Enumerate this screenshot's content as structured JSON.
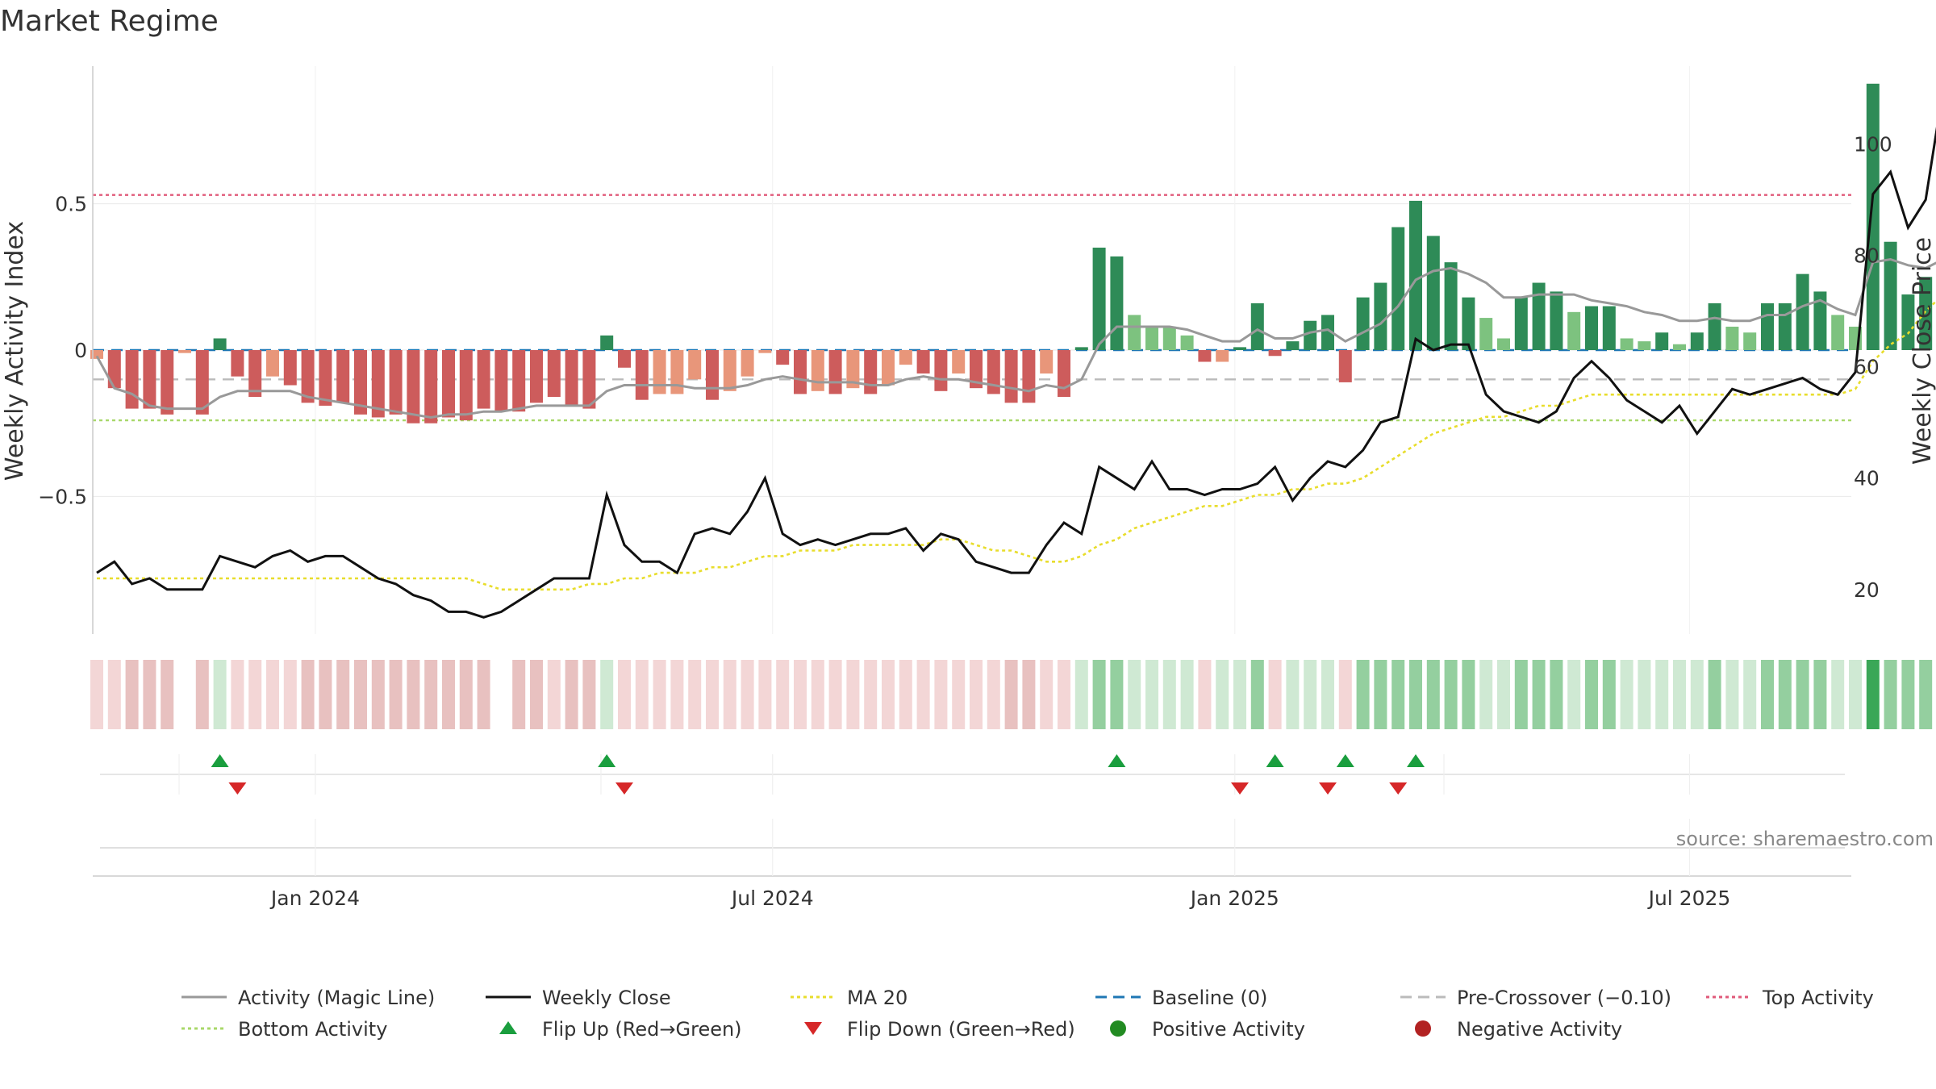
{
  "chart_data": {
    "type": "bar",
    "title": "Market Regime",
    "ylabel": "Weekly Activity Index",
    "y2label": "Weekly Close Price",
    "ylim": [
      -0.97,
      0.97
    ],
    "y2lim": [
      12,
      114
    ],
    "yticks": [
      {
        "v": 0.5,
        "label": "0.5"
      },
      {
        "v": 0,
        "label": "0"
      },
      {
        "v": -0.5,
        "label": "−0.5"
      }
    ],
    "y2ticks": [
      {
        "v": 100,
        "label": "100"
      },
      {
        "v": 80,
        "label": "80"
      },
      {
        "v": 60,
        "label": "60"
      },
      {
        "v": 40,
        "label": "40"
      },
      {
        "v": 20,
        "label": "20"
      }
    ],
    "x_start": "2023-10-06",
    "x_step_days": 7,
    "xticks": [
      {
        "date": "2024-01-01",
        "label": "Jan 2024"
      },
      {
        "date": "2024-07-01",
        "label": "Jul 2024"
      },
      {
        "date": "2025-01-01",
        "label": "Jan 2025"
      },
      {
        "date": "2025-07-01",
        "label": "Jul 2025"
      }
    ],
    "top_activity": 0.53,
    "bottom_activity": -0.24,
    "pre_crossover": -0.1,
    "baseline": 0,
    "activity": [
      -0.03,
      -0.13,
      -0.2,
      -0.2,
      -0.22,
      -0.01,
      -0.22,
      0.04,
      -0.09,
      -0.16,
      -0.09,
      -0.12,
      -0.18,
      -0.19,
      -0.18,
      -0.22,
      -0.23,
      -0.22,
      -0.25,
      -0.25,
      -0.23,
      -0.24,
      -0.2,
      -0.21,
      -0.21,
      -0.18,
      -0.16,
      -0.19,
      -0.2,
      0.05,
      -0.06,
      -0.17,
      -0.15,
      -0.15,
      -0.1,
      -0.17,
      -0.14,
      -0.09,
      -0.01,
      -0.05,
      -0.15,
      -0.14,
      -0.15,
      -0.13,
      -0.15,
      -0.12,
      -0.05,
      -0.08,
      -0.14,
      -0.08,
      -0.13,
      -0.15,
      -0.18,
      -0.18,
      -0.08,
      -0.16,
      0.01,
      0.35,
      0.32,
      0.12,
      0.08,
      0.08,
      0.05,
      -0.04,
      -0.04,
      0.01,
      0.16,
      -0.02,
      0.03,
      0.1,
      0.12,
      -0.11,
      0.18,
      0.23,
      0.42,
      0.51,
      0.39,
      0.3,
      0.18,
      0.11,
      0.04,
      0.18,
      0.23,
      0.2,
      0.13,
      0.15,
      0.15,
      0.04,
      0.03,
      0.06,
      0.02,
      0.06,
      0.16,
      0.08,
      0.06,
      0.16,
      0.16,
      0.26,
      0.2,
      0.12,
      0.08,
      0.91,
      0.37,
      0.19,
      0.25,
      0.43
    ],
    "magic_line": [
      -0.02,
      -0.13,
      -0.15,
      -0.19,
      -0.2,
      -0.2,
      -0.2,
      -0.16,
      -0.14,
      -0.14,
      -0.14,
      -0.14,
      -0.16,
      -0.17,
      -0.18,
      -0.19,
      -0.2,
      -0.21,
      -0.22,
      -0.23,
      -0.22,
      -0.22,
      -0.21,
      -0.21,
      -0.2,
      -0.19,
      -0.19,
      -0.19,
      -0.19,
      -0.14,
      -0.12,
      -0.12,
      -0.12,
      -0.12,
      -0.13,
      -0.13,
      -0.13,
      -0.12,
      -0.1,
      -0.09,
      -0.1,
      -0.11,
      -0.11,
      -0.11,
      -0.12,
      -0.12,
      -0.1,
      -0.09,
      -0.1,
      -0.1,
      -0.11,
      -0.12,
      -0.13,
      -0.14,
      -0.12,
      -0.13,
      -0.1,
      0.02,
      0.08,
      0.08,
      0.08,
      0.08,
      0.07,
      0.05,
      0.03,
      0.03,
      0.07,
      0.04,
      0.04,
      0.06,
      0.07,
      0.03,
      0.06,
      0.09,
      0.15,
      0.24,
      0.27,
      0.28,
      0.26,
      0.23,
      0.18,
      0.18,
      0.19,
      0.19,
      0.19,
      0.17,
      0.16,
      0.15,
      0.13,
      0.12,
      0.1,
      0.1,
      0.11,
      0.1,
      0.1,
      0.12,
      0.12,
      0.15,
      0.17,
      0.14,
      0.12,
      0.3,
      0.31,
      0.29,
      0.28,
      0.31
    ],
    "weekly_close": [
      23,
      25,
      21,
      22,
      20,
      20,
      20,
      26,
      25,
      24,
      26,
      27,
      25,
      26,
      26,
      24,
      22,
      21,
      19,
      18,
      16,
      16,
      15,
      16,
      18,
      20,
      22,
      22,
      22,
      37,
      28,
      25,
      25,
      23,
      30,
      31,
      30,
      34,
      40,
      30,
      28,
      29,
      28,
      29,
      30,
      30,
      31,
      27,
      30,
      29,
      25,
      24,
      23,
      23,
      28,
      32,
      30,
      42,
      40,
      38,
      43,
      38,
      38,
      37,
      38,
      38,
      39,
      42,
      36,
      40,
      43,
      42,
      45,
      50,
      51,
      65,
      63,
      64,
      64,
      55,
      52,
      51,
      50,
      52,
      58,
      61,
      58,
      54,
      52,
      50,
      53,
      48,
      52,
      56,
      55,
      56,
      57,
      58,
      56,
      55,
      59,
      91,
      95,
      85,
      90,
      110
    ],
    "ma20": [
      22,
      22,
      22,
      22,
      22,
      22,
      22,
      22,
      22,
      22,
      22,
      22,
      22,
      22,
      22,
      22,
      22,
      22,
      22,
      22,
      22,
      22,
      21,
      20,
      20,
      20,
      20,
      20,
      21,
      21,
      22,
      22,
      23,
      23,
      23,
      24,
      24,
      25,
      26,
      26,
      27,
      27,
      27,
      28,
      28,
      28,
      28,
      28,
      29,
      29,
      28,
      27,
      27,
      26,
      25,
      25,
      26,
      28,
      29,
      31,
      32,
      33,
      34,
      35,
      35,
      36,
      37,
      37,
      38,
      38,
      39,
      39,
      40,
      42,
      44,
      46,
      48,
      49,
      50,
      51,
      51,
      52,
      53,
      53,
      54,
      55,
      55,
      55,
      55,
      55,
      55,
      55,
      55,
      55,
      55,
      55,
      55,
      55,
      55,
      55,
      56,
      61,
      64,
      66,
      70,
      73
    ],
    "regime": [
      -1,
      -1,
      -1,
      -1,
      -1,
      0,
      -1,
      1,
      -1,
      -1,
      -1,
      -1,
      -1,
      -1,
      -1,
      -1,
      -1,
      -1,
      -1,
      -1,
      -1,
      -1,
      -1,
      0,
      -1,
      -1,
      -1,
      -1,
      -1,
      1,
      -1,
      -1,
      -1,
      -1,
      -1,
      -1,
      -1,
      -1,
      -1,
      -1,
      -1,
      -1,
      -1,
      -1,
      -1,
      -1,
      -1,
      -1,
      -1,
      -1,
      -1,
      -1,
      -1,
      -1,
      -1,
      -1,
      1,
      1,
      1,
      1,
      1,
      1,
      1,
      -1,
      1,
      1,
      1,
      -1,
      1,
      1,
      1,
      -1,
      1,
      1,
      1,
      1,
      1,
      1,
      1,
      1,
      1,
      1,
      1,
      1,
      1,
      1,
      1,
      1,
      1,
      1,
      1,
      1,
      1,
      1,
      1,
      1,
      1,
      1,
      1,
      1,
      1,
      1,
      1,
      1,
      1,
      1
    ],
    "flip_up_weeks": [
      7,
      29,
      58,
      67,
      71,
      75
    ],
    "flip_down_weeks": [
      8,
      30,
      65,
      70,
      74
    ],
    "colors": {
      "pos_strong": "#2e8b57",
      "pos_weak": "#7dc27f",
      "neg_strong": "#cd5c5c",
      "neg_weak": "#e8967a",
      "magic": "#999999",
      "close": "#111111",
      "ma20": "#e8dd2c",
      "baseline": "#1f77b4",
      "pre": "#bbbbbb",
      "top": "#e05a7a",
      "bottom": "#a8d86a",
      "flip_up": "#1a9e3e",
      "flip_down": "#d62728",
      "pos_dot": "#228b22",
      "neg_dot": "#b22222",
      "strip_pos": [
        "#cfe9d3",
        "#94cf9f",
        "#3aa757"
      ],
      "strip_neg": [
        "#f3d6d6",
        "#e8c1c0"
      ]
    },
    "legend": [
      {
        "label": "Activity (Magic Line)",
        "kind": "line",
        "color": "#999999",
        "dash": ""
      },
      {
        "label": "Weekly Close",
        "kind": "line",
        "color": "#111111",
        "dash": ""
      },
      {
        "label": "MA 20",
        "kind": "line",
        "color": "#e8dd2c",
        "dash": "4 4"
      },
      {
        "label": "Baseline (0)",
        "kind": "line",
        "color": "#1f77b4",
        "dash": "14 8"
      },
      {
        "label": "Pre-Crossover (−0.10)",
        "kind": "line",
        "color": "#bbbbbb",
        "dash": "14 8"
      },
      {
        "label": "Top Activity",
        "kind": "line",
        "color": "#e05a7a",
        "dash": "4 4"
      },
      {
        "label": "Bottom Activity",
        "kind": "line",
        "color": "#a8d86a",
        "dash": "4 4"
      },
      {
        "label": "Flip Up (Red→Green)",
        "kind": "tri-up",
        "color": "#1a9e3e",
        "dash": ""
      },
      {
        "label": "Flip Down (Green→Red)",
        "kind": "tri-down",
        "color": "#d62728",
        "dash": ""
      },
      {
        "label": "Positive Activity",
        "kind": "dot",
        "color": "#228b22",
        "dash": ""
      },
      {
        "label": "Negative Activity",
        "kind": "dot",
        "color": "#b22222",
        "dash": ""
      }
    ],
    "source": "source: sharemaestro.com"
  }
}
